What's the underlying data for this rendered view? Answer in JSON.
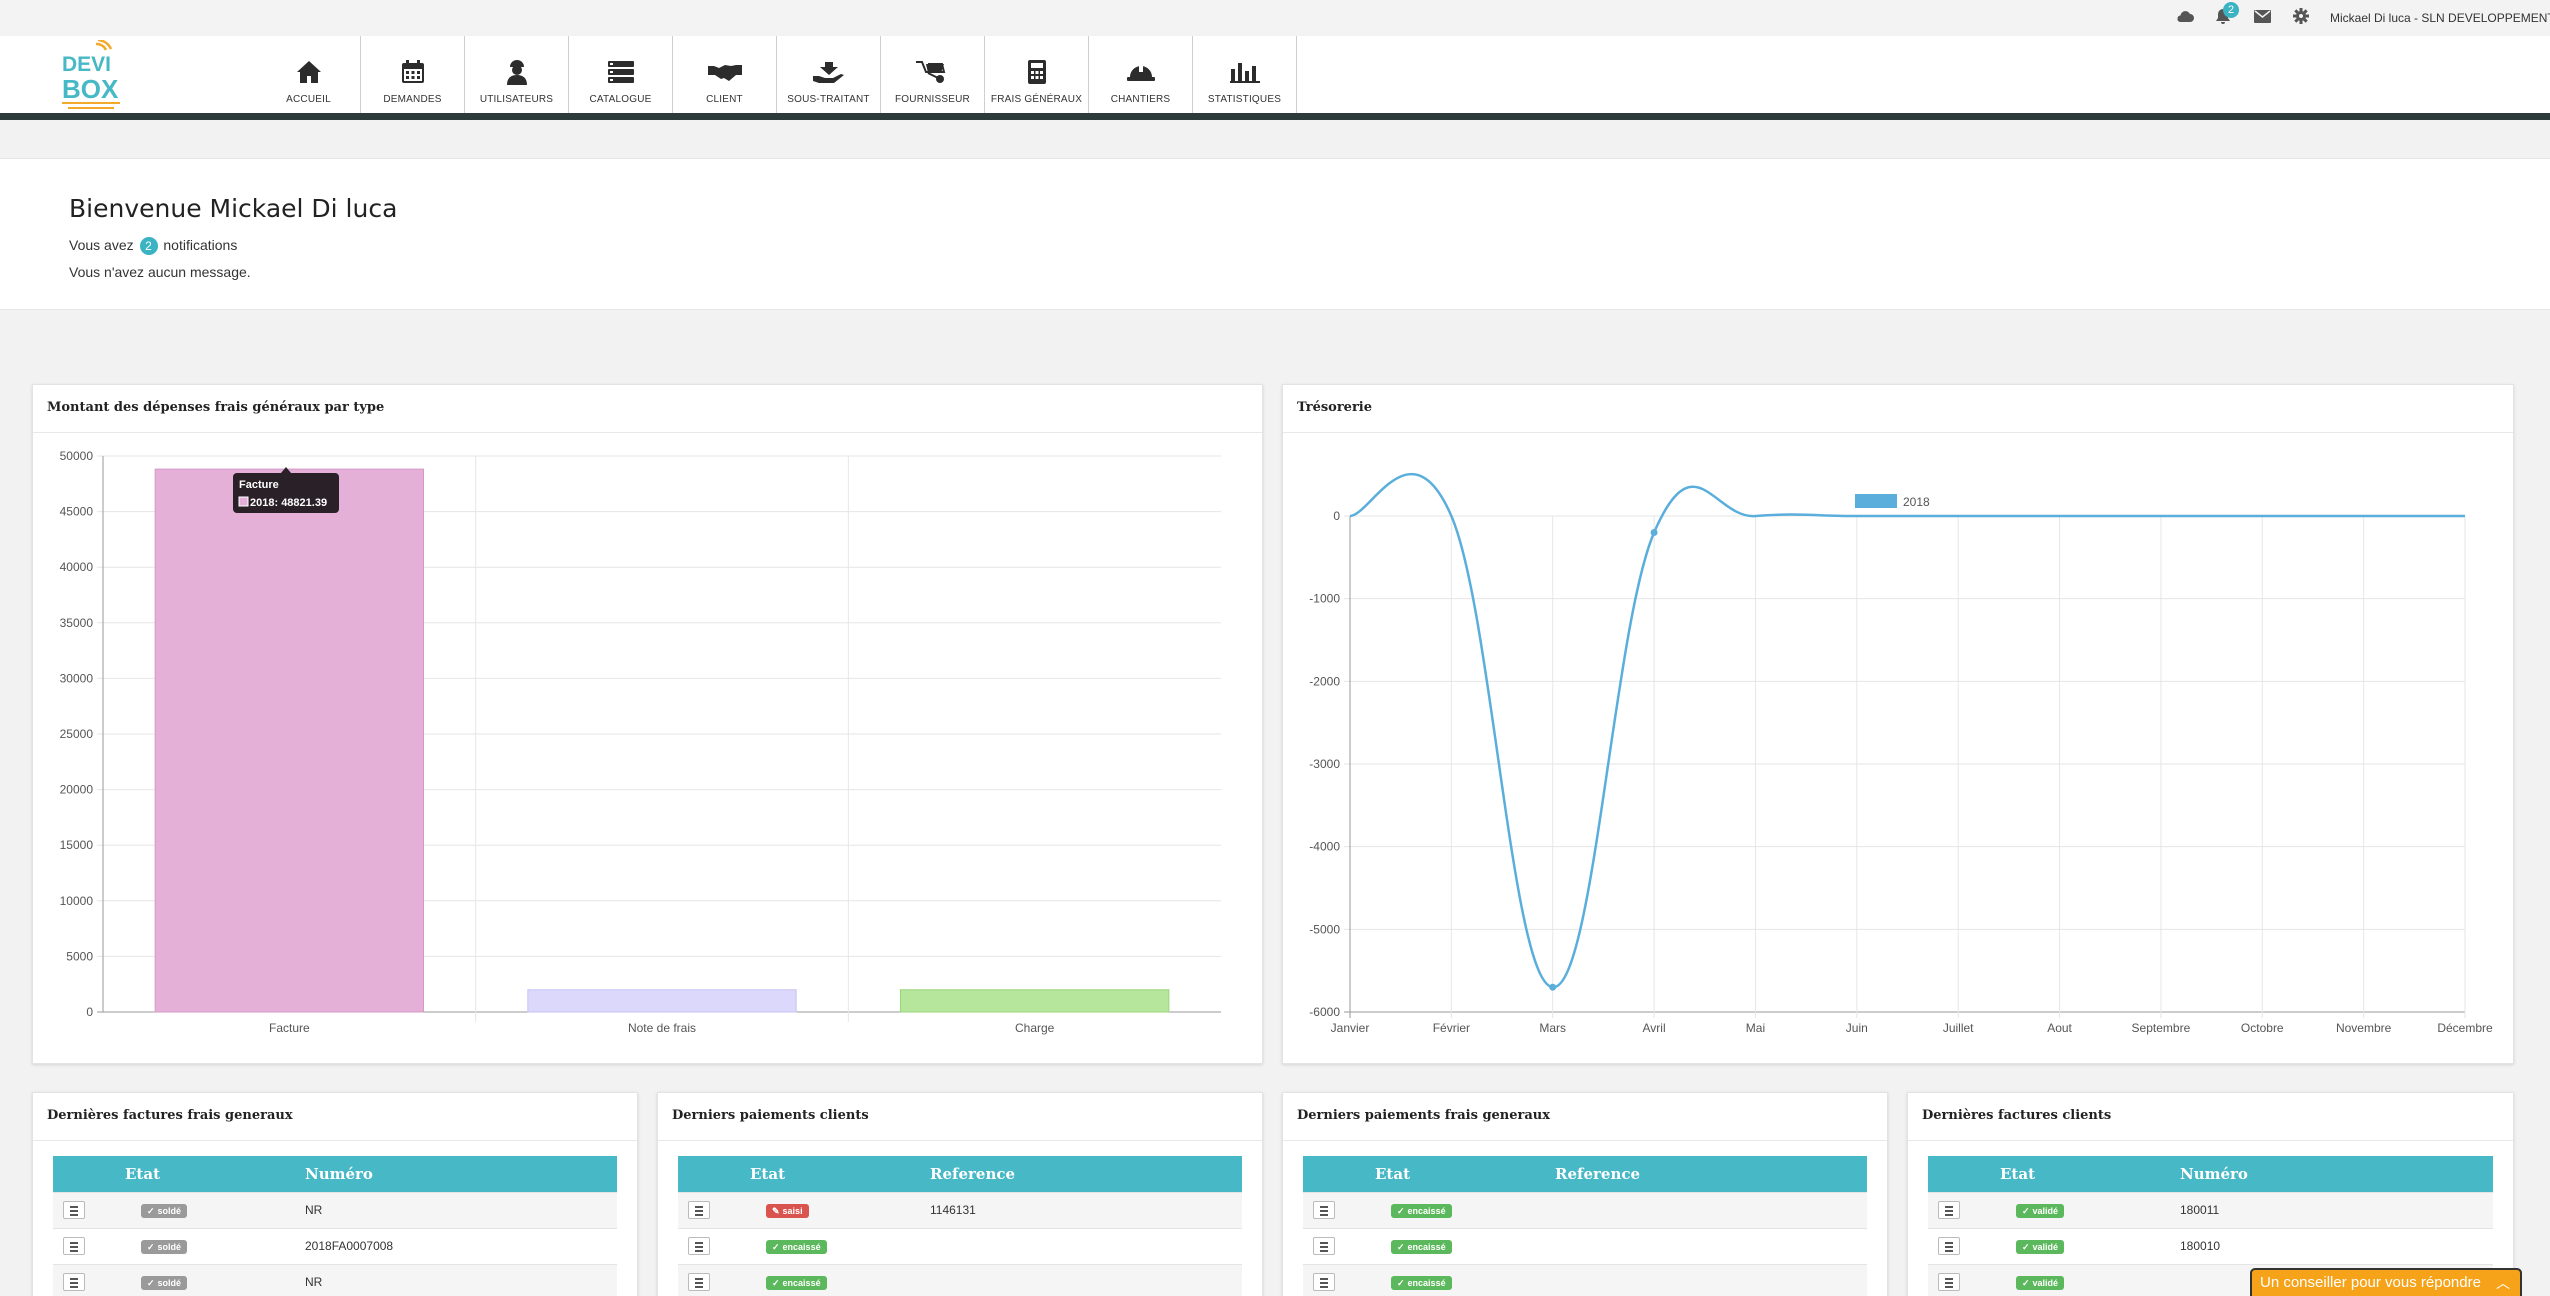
{
  "topbar": {
    "notification_count": "2",
    "user_label": "Mickael Di luca - SLN DEVELOPPEMENT",
    "icons": [
      "cloud-icon",
      "bell-icon",
      "envelope-icon",
      "gear-icon"
    ]
  },
  "logo": {
    "line1": "DEVI",
    "line2": "BOX"
  },
  "nav": {
    "items": [
      {
        "label": "ACCUEIL",
        "icon": "home-icon"
      },
      {
        "label": "DEMANDES",
        "icon": "calendar-icon"
      },
      {
        "label": "UTILISATEURS",
        "icon": "worker-icon"
      },
      {
        "label": "CATALOGUE",
        "icon": "stack-icon"
      },
      {
        "label": "CLIENT",
        "icon": "handshake-icon"
      },
      {
        "label": "SOUS-TRAITANT",
        "icon": "hand-holding-icon"
      },
      {
        "label": "FOURNISSEUR",
        "icon": "wheelbarrow-icon"
      },
      {
        "label": "FRAIS GÉNÉRAUX",
        "icon": "calculator-icon"
      },
      {
        "label": "CHANTIERS",
        "icon": "helmet-icon"
      },
      {
        "label": "STATISTIQUES",
        "icon": "bar-chart-icon"
      }
    ]
  },
  "welcome": {
    "title": "Bienvenue Mickael Di luca",
    "notif_prefix": "Vous avez",
    "notif_count": "2",
    "notif_suffix": "notifications",
    "message": "Vous n'avez aucun message."
  },
  "colors": {
    "accent": "#46b8c6",
    "bar_facture": "#e5b0d8",
    "bar_note": "#dcd8fb",
    "bar_charge": "#b6e59c",
    "line": "#5aaedc",
    "status_solde": "#9a9a9a",
    "status_saisi": "#d9534f",
    "status_ok": "#5cb85c",
    "chat": "#f6a31a"
  },
  "chart_data": [
    {
      "type": "bar",
      "title": "Montant des dépenses frais généraux par type",
      "categories": [
        "Facture",
        "Note de frais",
        "Charge"
      ],
      "series": [
        {
          "name": "2018",
          "values": [
            48821.39,
            2000,
            2000
          ]
        }
      ],
      "ylim": [
        0,
        50000
      ],
      "yticks": [
        0,
        5000,
        10000,
        15000,
        20000,
        25000,
        30000,
        35000,
        40000,
        45000,
        50000
      ],
      "grid": true,
      "tooltip": {
        "title": "Facture",
        "text": "2018: 48821.39"
      }
    },
    {
      "type": "line",
      "title": "Trésorerie",
      "categories": [
        "Janvier",
        "Février",
        "Mars",
        "Avril",
        "Mai",
        "Juin",
        "Juillet",
        "Aout",
        "Septembre",
        "Octobre",
        "Novembre",
        "Décembre"
      ],
      "series": [
        {
          "name": "2018",
          "values": [
            0,
            0,
            -5700,
            -200,
            0,
            0,
            0,
            0,
            0,
            0,
            0,
            0
          ]
        }
      ],
      "ylim": [
        -6000,
        0
      ],
      "yticks": [
        0,
        -1000,
        -2000,
        -3000,
        -4000,
        -5000,
        -6000
      ],
      "grid": true,
      "legend": "top-center"
    }
  ],
  "tables": [
    {
      "title": "Dernières factures frais generaux",
      "headers": [
        "",
        "Etat",
        "Numéro"
      ],
      "rows": [
        {
          "status": "soldé",
          "status_color": "#9a9a9a",
          "status_icon": "✓",
          "value": "NR"
        },
        {
          "status": "soldé",
          "status_color": "#9a9a9a",
          "status_icon": "✓",
          "value": "2018FA0007008"
        },
        {
          "status": "soldé",
          "status_color": "#9a9a9a",
          "status_icon": "✓",
          "value": "NR"
        }
      ]
    },
    {
      "title": "Derniers paiements clients",
      "headers": [
        "",
        "Etat",
        "Reference"
      ],
      "rows": [
        {
          "status": "saisi",
          "status_color": "#d9534f",
          "status_icon": "✎",
          "value": "1146131"
        },
        {
          "status": "encaissé",
          "status_color": "#5cb85c",
          "status_icon": "✓",
          "value": ""
        },
        {
          "status": "encaissé",
          "status_color": "#5cb85c",
          "status_icon": "✓",
          "value": ""
        }
      ]
    },
    {
      "title": "Derniers paiements frais generaux",
      "headers": [
        "",
        "Etat",
        "Reference"
      ],
      "rows": [
        {
          "status": "encaissé",
          "status_color": "#5cb85c",
          "status_icon": "✓",
          "value": ""
        },
        {
          "status": "encaissé",
          "status_color": "#5cb85c",
          "status_icon": "✓",
          "value": ""
        },
        {
          "status": "encaissé",
          "status_color": "#5cb85c",
          "status_icon": "✓",
          "value": ""
        }
      ]
    },
    {
      "title": "Dernières factures clients",
      "headers": [
        "",
        "Etat",
        "Numéro"
      ],
      "rows": [
        {
          "status": "validé",
          "status_color": "#5cb85c",
          "status_icon": "✓",
          "value": "180011"
        },
        {
          "status": "validé",
          "status_color": "#5cb85c",
          "status_icon": "✓",
          "value": "180010"
        },
        {
          "status": "validé",
          "status_color": "#5cb85c",
          "status_icon": "✓",
          "value": ""
        }
      ]
    }
  ],
  "chat": {
    "label": "Un conseiller pour vous répondre"
  }
}
